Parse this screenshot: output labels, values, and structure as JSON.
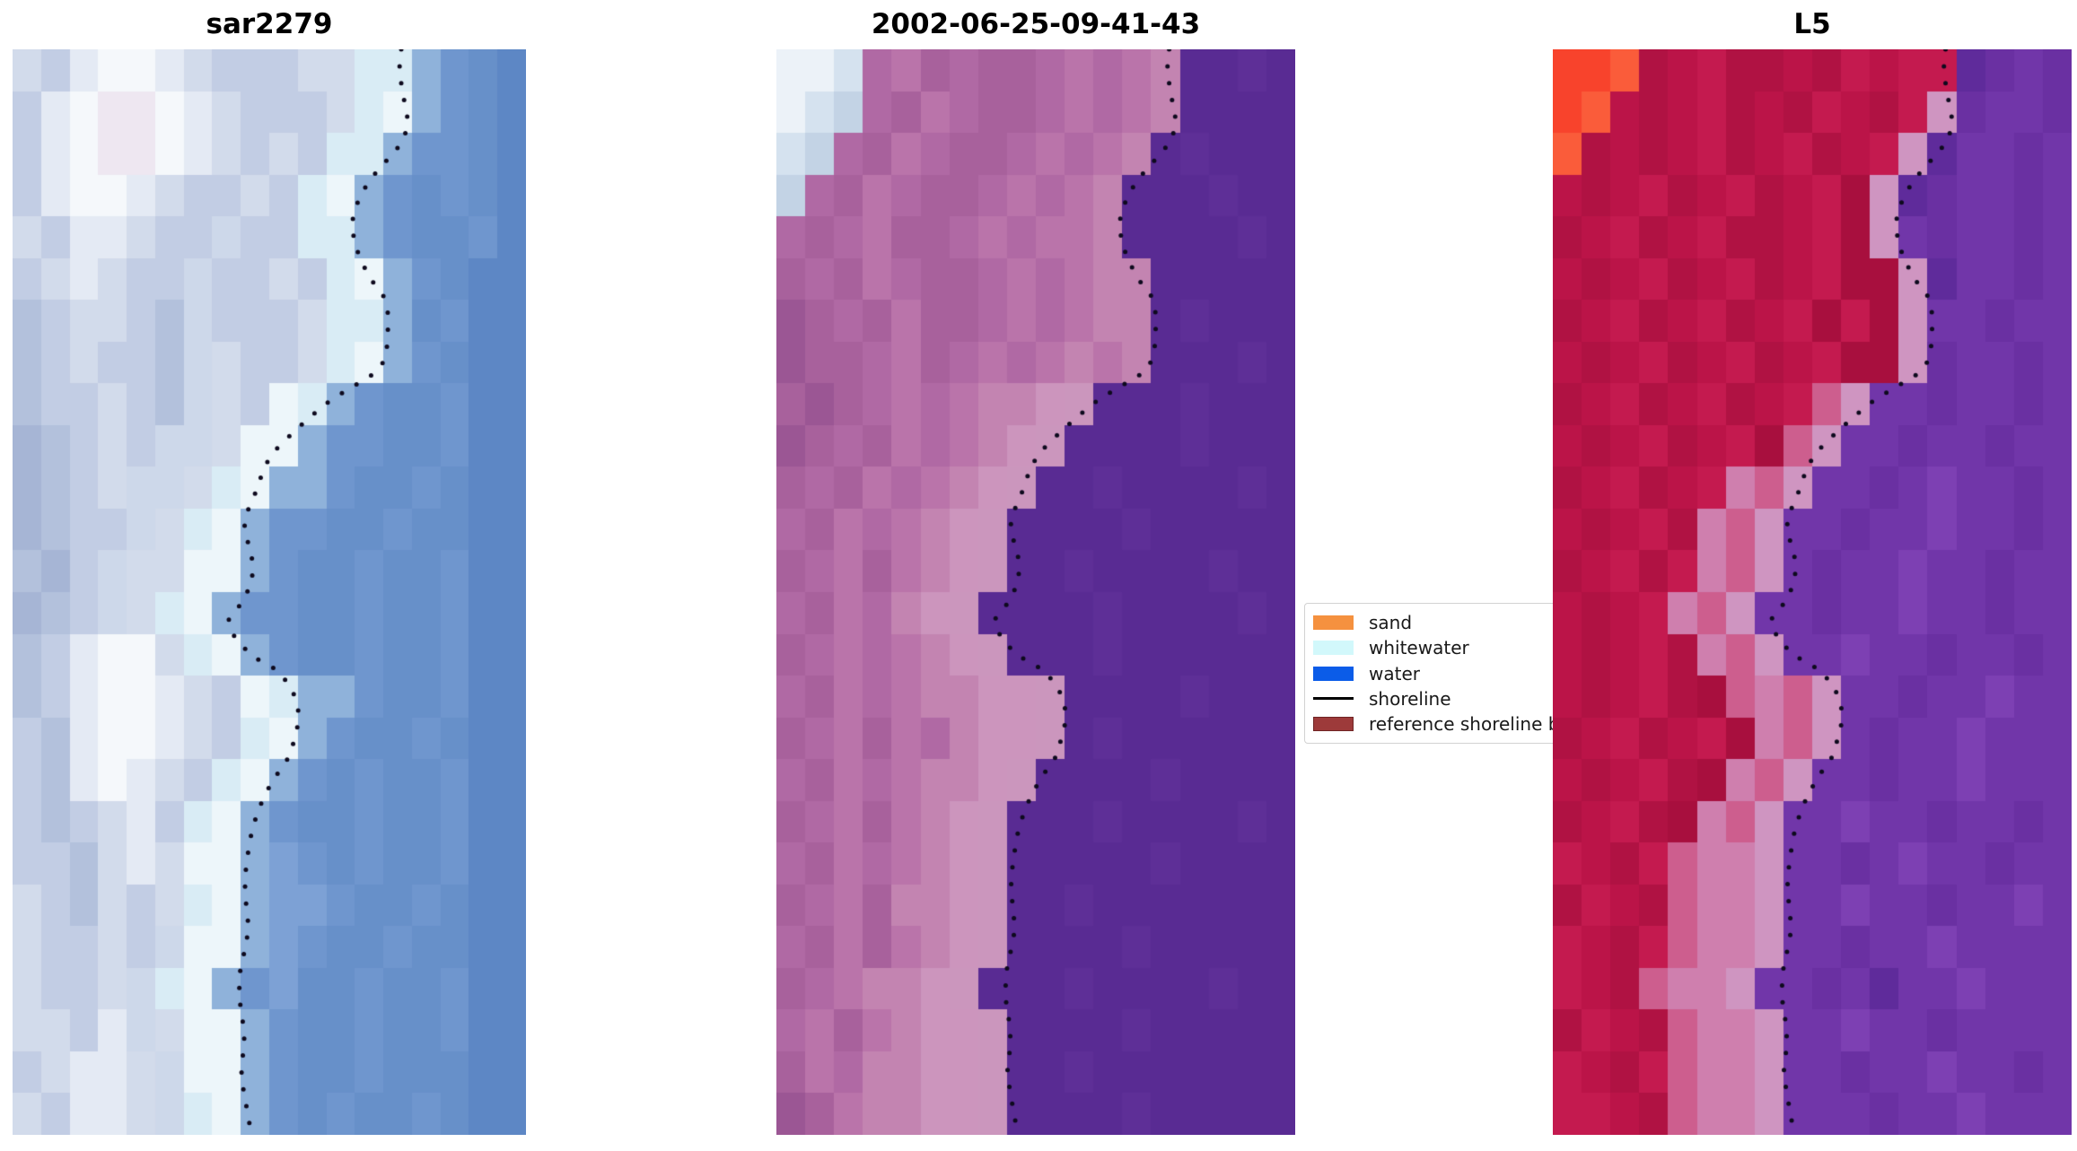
{
  "figure": {
    "background": "#ffffff",
    "panels": [
      {
        "id": "sar",
        "title": "sar2279",
        "grid": {
          "cols": 18,
          "rows": 26,
          "palette": {
            "a": "#b3c1dc",
            "b": "#c2cde4",
            "c": "#d2dbeb",
            "d": "#e4eaf4",
            "e": "#f5f8fb",
            "f": "#eee7f1",
            "g": "#a6b5d5",
            "h": "#cdd8ea",
            "x": "#d9ecf5",
            "y": "#edf6fa",
            "q": "#8fb2da",
            "m": "#6f96ce",
            "n": "#6790c9",
            "o": "#5d87c5",
            "p": "#7da1d5"
          },
          "cells": [
            "cbdeedcbbbccxxqmno",
            "bdeffedcbbbcxyqmno",
            "bdeffedcbcbxxqmmno",
            "bdeedcbbcbxyqmnmno",
            "cbddcbbhbbxxqmnnmo",
            "bcdcbbhbbcbxyqmnoo",
            "abccbahbbbcxxqnmoo",
            "abcbbahcbbcxyqmnoo",
            "abbcbahcbyxqmnnmoo",
            "gabcbhhcyyqmmnnmoo",
            "gabchhcxyqqmnnmnoo",
            "gabbhcxyqmmnnmnnoo",
            "agbhccyyqmnnmnnmoo",
            "gabhcxyqmmnnmnnmoo",
            "abdeecxyqmnnmnnmoo",
            "abdeedcbyxqqmnnmoo",
            "badeedcbxyqmnnmnoo",
            "badedcbxyqmnmnnmoo",
            "babcdbxyqmnnmnnmoo",
            "bbacdcyyqpmnmnnmoo",
            "cbacbcxyqppmnnmnoo",
            "cbbcbhyyqpmnnmnnoo",
            "cbbchxyqmpnnmnnmoo",
            "ccbdhcyyqmnnmnnmoo",
            "bcddchyyqmnnmnnnoo",
            "cbddchxyqmnmnnmnoo"
          ]
        }
      },
      {
        "id": "classified",
        "title": "2002-06-25-09-41-43",
        "grid": {
          "cols": 18,
          "rows": 26,
          "palette": {
            "a": "#b069a4",
            "b": "#a8619c",
            "c": "#ba74aa",
            "d": "#c384b1",
            "e": "#cc95bd",
            "g": "#9b5694",
            "W": "#ecf2f8",
            "X": "#d5e2ef",
            "Y": "#c3d3e5",
            "1": "#cb96bd",
            "w": "#592b93",
            "v": "#5e2f97"
          },
          "cells": [
            "WWXacbabbacacdwwvw",
            "WXYabcabbacacdwwww",
            "XYabcabbacacdwvwww",
            "Yabcabbacacdwwwvww",
            "abacbbacaccdwwwwvw",
            "babcabbacacddwwwww",
            "gbabcbbacacddwvwww",
            "gbbacbacacdcdwwwvw",
            "bgbacacdde1wwwvwww",
            "gbabcacde1wwwwvwww",
            "babcacde1wwvwwwwvw",
            "abcacde1wwwwvwwwww",
            "bacbcde1wwvwwwwvww",
            "abcade1wwwwvwwwwvw",
            "bacacde1wwwvwwwwww",
            "abcacddee1wwwwvwww",
            "bacbcadee1wvwwwwww",
            "abcacdde1wwwwvwwww",
            "bacbcde1wwwvwwwwvw",
            "abcacde1wwwwwvwwww",
            "bacbdde1wwvwwwwwww",
            "abcbcde1wwwwvwwwww",
            "bacdde1wwwvwwwwvww",
            "acbcdee1wwwwvwwwww",
            "bcaddee1wwvwwwwwww",
            "gbcddee1wwwwvwwwww"
          ]
        }
      },
      {
        "id": "l5",
        "title": "L5",
        "grid": {
          "cols": 18,
          "rows": 26,
          "palette": {
            "S": "#f8432c",
            "T": "#fa5c3a",
            "a": "#bb1448",
            "b": "#b01243",
            "c": "#c41a4f",
            "d": "#a80f3e",
            "e": "#cd5e8e",
            "f": "#cf7fae",
            "1": "#cf95c1",
            "w": "#7136a9",
            "v": "#6a30a2",
            "u": "#7d40b3",
            "t": "#5f2b9b"
          },
          "cells": [
            "SSTbacbbabcacctvwv",
            "STabacbabcabc1vwwv",
            "Tbabacbacbac1twwvw",
            "abacbacbacd1tvwwvw",
            "bacbacbbacd1wvwwvw",
            "abacbacbacdd1twwvw",
            "bacbacbacdcd1wwvww",
            "abacbacbacdd1vwwvw",
            "bacbacbace1wwvwwvw",
            "abacbacde1wwvwwvww",
            "bacbacfe1wwvwuwwvw",
            "abacbfe1wwvwwuwwvw",
            "bacbcfe1wvwwuwwvww",
            "abacfe1wwvwwuwwvww",
            "abacbfe1wwuwwvwwvw",
            "abacbdefe1wwvwwuww",
            "bacbacdfe1wvwwuwww",
            "abacbdfe1wwvwwuwww",
            "bacbdfe1wwuwwvwwvw",
            "cabceff1wwvwuwwvww",
            "bcabeff1wwuwwvwwuw",
            "cabceff1wwvwwuwwww",
            "cabeff1wwvwtwwuwww",
            "bcabeff1wwuwwvwwww",
            "cabceff1wwvwwuwwvw",
            "ccabeff1wwwvwwuwww"
          ]
        }
      }
    ],
    "shoreline": {
      "color": "#0e0a1e",
      "dot_radius": 2.5,
      "dot_spacing": 19,
      "points": [
        [
          0.757,
          0.0
        ],
        [
          0.753,
          0.02
        ],
        [
          0.762,
          0.045
        ],
        [
          0.771,
          0.068
        ],
        [
          0.76,
          0.085
        ],
        [
          0.737,
          0.098
        ],
        [
          0.71,
          0.112
        ],
        [
          0.686,
          0.128
        ],
        [
          0.665,
          0.148
        ],
        [
          0.661,
          0.163
        ],
        [
          0.667,
          0.18
        ],
        [
          0.68,
          0.196
        ],
        [
          0.698,
          0.212
        ],
        [
          0.722,
          0.227
        ],
        [
          0.731,
          0.243
        ],
        [
          0.731,
          0.26
        ],
        [
          0.729,
          0.275
        ],
        [
          0.72,
          0.29
        ],
        [
          0.7,
          0.3
        ],
        [
          0.658,
          0.312
        ],
        [
          0.62,
          0.323
        ],
        [
          0.576,
          0.34
        ],
        [
          0.54,
          0.356
        ],
        [
          0.508,
          0.371
        ],
        [
          0.489,
          0.386
        ],
        [
          0.479,
          0.401
        ],
        [
          0.467,
          0.416
        ],
        [
          0.452,
          0.431
        ],
        [
          0.452,
          0.446
        ],
        [
          0.464,
          0.461
        ],
        [
          0.468,
          0.476
        ],
        [
          0.466,
          0.491
        ],
        [
          0.448,
          0.509
        ],
        [
          0.421,
          0.525
        ],
        [
          0.431,
          0.54
        ],
        [
          0.45,
          0.551
        ],
        [
          0.478,
          0.562
        ],
        [
          0.516,
          0.572
        ],
        [
          0.543,
          0.588
        ],
        [
          0.556,
          0.605
        ],
        [
          0.557,
          0.62
        ],
        [
          0.549,
          0.635
        ],
        [
          0.541,
          0.65
        ],
        [
          0.519,
          0.665
        ],
        [
          0.497,
          0.682
        ],
        [
          0.479,
          0.7
        ],
        [
          0.466,
          0.72
        ],
        [
          0.458,
          0.742
        ],
        [
          0.452,
          0.765
        ],
        [
          0.455,
          0.788
        ],
        [
          0.46,
          0.81
        ],
        [
          0.452,
          0.83
        ],
        [
          0.443,
          0.85
        ],
        [
          0.441,
          0.872
        ],
        [
          0.448,
          0.894
        ],
        [
          0.452,
          0.916
        ],
        [
          0.445,
          0.938
        ],
        [
          0.45,
          0.96
        ],
        [
          0.458,
          0.98
        ],
        [
          0.465,
          1.0
        ]
      ]
    },
    "legend": {
      "entries": [
        {
          "label": "sand",
          "swatch": "patch",
          "color": "#f5913f"
        },
        {
          "label": "whitewater",
          "swatch": "patch",
          "color": "#d2f8fb"
        },
        {
          "label": "water",
          "swatch": "patch",
          "color": "#0b5ce8"
        },
        {
          "label": "shoreline",
          "swatch": "line",
          "color": "#000000"
        },
        {
          "label": "reference shoreline buffer",
          "swatch": "patch",
          "color": "#9d3a3a",
          "edge": "#6f2424"
        }
      ]
    }
  },
  "chart_data": {
    "type": "image",
    "description": "Three-panel coastal satellite shoreline-detection figure: SAR backscatter image, classified image, and Landsat-5 false-color image, each overlaid with a dotted detected shoreline.",
    "panel_titles": [
      "sar2279",
      "2002-06-25-09-41-43",
      "L5"
    ],
    "classes": [
      "sand",
      "whitewater",
      "water"
    ],
    "overlays": [
      "shoreline",
      "reference shoreline buffer"
    ],
    "legend_position": "right of middle panel, partially covered by third panel",
    "axes": "none (image axes, no ticks or labels)"
  }
}
